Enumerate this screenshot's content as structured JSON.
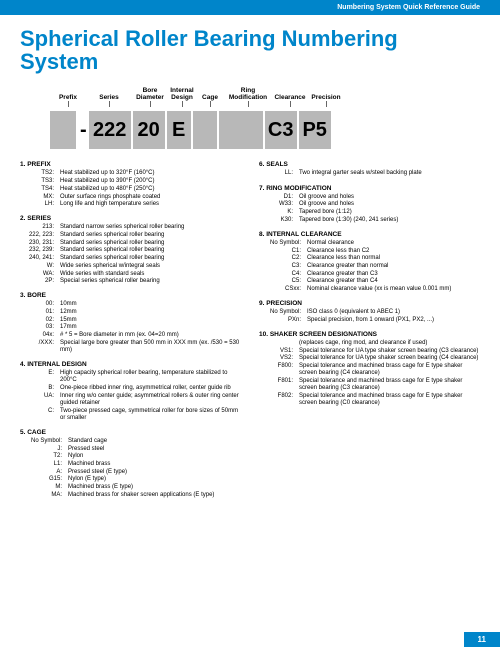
{
  "header": "Numbering System Quick Reference Guide",
  "title": "Spherical Roller Bearing Numbering System",
  "page": "11",
  "labels": [
    "Prefix",
    "Series",
    "Bore Diameter",
    "Internal Design",
    "Cage",
    "Ring Modification",
    "Clearance",
    "Precision"
  ],
  "boxes": [
    "",
    "222",
    "20",
    "E",
    "",
    "",
    "C3",
    "P5"
  ],
  "s1": {
    "h": "1.  PREFIX",
    "r": [
      [
        "TS2:",
        "Heat stabilized up to 320°F (160°C)"
      ],
      [
        "TS3:",
        "Heat stabilized up to 390°F (200°C)"
      ],
      [
        "TS4:",
        "Heat stabilized up to 480°F (250°C)"
      ],
      [
        "MX:",
        "Outer surface rings phosphate coated"
      ],
      [
        "LH:",
        "Long life and high temperature series"
      ]
    ]
  },
  "s2": {
    "h": "2.  SERIES",
    "r": [
      [
        "213:",
        "Standard narrow series spherical roller bearing"
      ],
      [
        "222, 223:",
        "Standard series spherical roller bearing"
      ],
      [
        "230, 231:",
        "Standard series spherical roller bearing"
      ],
      [
        "232, 239:",
        "Standard series spherical roller bearing"
      ],
      [
        "240, 241:",
        "Standard series spherical roller bearing"
      ],
      [
        "W:",
        "Wide series spherical w/integral seals"
      ],
      [
        "WA:",
        "Wide series with standard seals"
      ],
      [
        "2P:",
        "Special series spherical roller bearing"
      ]
    ]
  },
  "s3": {
    "h": "3.  BORE",
    "r": [
      [
        "00:",
        "10mm"
      ],
      [
        "01:",
        "12mm"
      ],
      [
        "02:",
        "15mm"
      ],
      [
        "03:",
        "17mm"
      ],
      [
        "04x:",
        "# * 5 = Bore diameter in mm (ex. 04=20 mm)"
      ],
      [
        "/XXX:",
        "Special large bore greater than 500 mm in XXX mm (ex. /530 = 530 mm)"
      ]
    ]
  },
  "s4": {
    "h": "4.  INTERNAL DESIGN",
    "r": [
      [
        "E:",
        "High capacity spherical roller bearing, temperature stabilized to 200°C"
      ],
      [
        "B:",
        "One-piece ribbed inner ring, asymmetrical roller, center guide rib"
      ],
      [
        "UA:",
        "Inner ring w/o center guide; asymmetrical rollers & outer ring center guided retainer"
      ],
      [
        "C:",
        "Two-piece pressed cage, symmetrical roller for bore sizes of 50mm or smaller"
      ]
    ]
  },
  "s5": {
    "h": "5.  CAGE",
    "r": [
      [
        "No Symbol:",
        "Standard cage"
      ],
      [
        "J:",
        "Pressed steel"
      ],
      [
        "T2:",
        "Nylon"
      ],
      [
        "L1:",
        "Machined brass"
      ],
      [
        "A:",
        "Pressed steel (E type)"
      ],
      [
        "G15:",
        "Nylon (E type)"
      ],
      [
        "M:",
        "Machined brass (E type)"
      ],
      [
        "MA:",
        "Machined brass for shaker screen applications (E type)"
      ]
    ]
  },
  "s6": {
    "h": "6.  SEALS",
    "r": [
      [
        "LL:",
        "Two integral garter seals w/steel backing plate"
      ]
    ]
  },
  "s7": {
    "h": "7.  RING MODIFICATION",
    "r": [
      [
        "D1:",
        "Oil groove and holes"
      ],
      [
        "W33:",
        "Oil groove and holes"
      ],
      [
        "K:",
        "Tapered bore (1:12)"
      ],
      [
        "K30:",
        "Tapered bore (1:30) (240, 241 series)"
      ]
    ]
  },
  "s8": {
    "h": "8.  INTERNAL CLEARANCE",
    "r": [
      [
        "No Symbol:",
        "Normal clearance"
      ],
      [
        "C1:",
        "Clearance less than C2"
      ],
      [
        "C2:",
        "Clearance less than normal"
      ],
      [
        "C3:",
        "Clearance greater than normal"
      ],
      [
        "C4:",
        "Clearance greater than C3"
      ],
      [
        "C5:",
        "Clearance greater than C4"
      ],
      [
        "CSxx:",
        "Nominal clearance value (xx is mean value 0.001 mm)"
      ]
    ]
  },
  "s9": {
    "h": "9.  PRECISION",
    "r": [
      [
        "No Symbol:",
        "ISO class 0 (equivalent to ABEC 1)"
      ],
      [
        "PXn:",
        "Special precision, from 1 onward (PX1, PX2, ...)"
      ]
    ]
  },
  "s10": {
    "h": "10.  SHAKER SCREEN DESIGNATIONS",
    "note": "(replaces cage, ring mod, and clearance if used)",
    "r": [
      [
        "VS1:",
        "Special tolerance for UA type shaker screen bearing (C3 clearance)"
      ],
      [
        "VS2:",
        "Special tolerance for UA type shaker screen bearing (C4 clearance)"
      ],
      [
        "F800:",
        "Special tolerance and machined brass cage for E type shaker screen bearing (C4 clearance)"
      ],
      [
        "F801:",
        "Special tolerance and machined brass cage for E type shaker screen bearing (C3 clearance)"
      ],
      [
        "F802:",
        "Special tolerance and machined brass cage for E type shaker screen bearing (C0 clearance)"
      ]
    ]
  }
}
